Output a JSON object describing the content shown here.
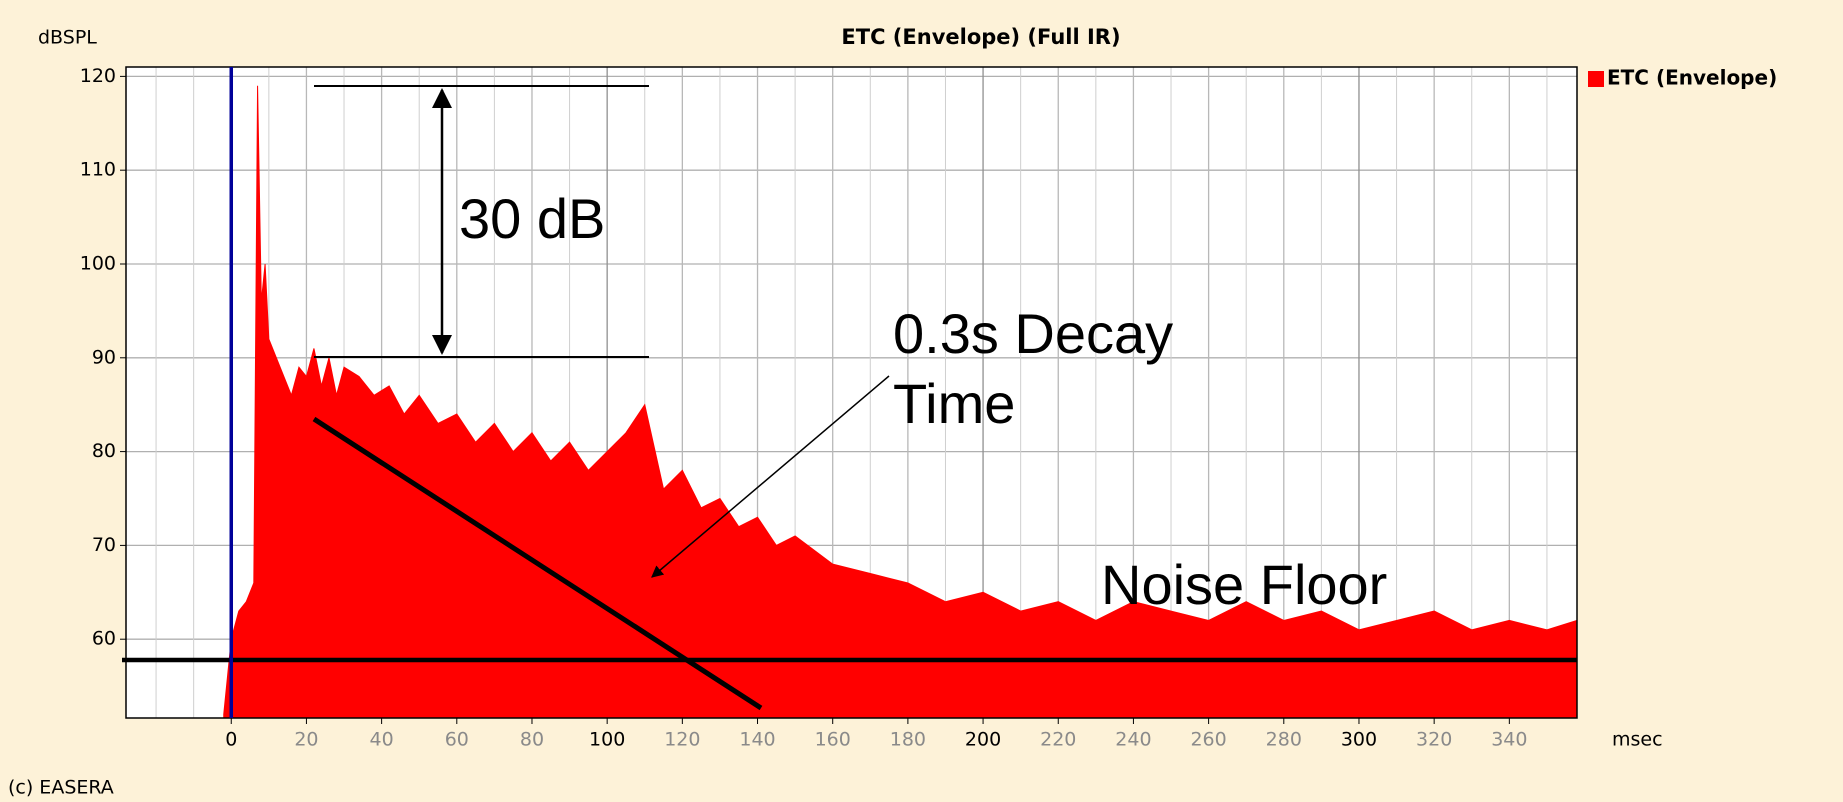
{
  "chart_data": {
    "type": "area",
    "title": "ETC (Envelope) (Full IR)",
    "y_label": "dBSPL",
    "x_label": "msec",
    "credit": "(c) EASERA",
    "annotations": [
      "30 dB",
      "0.3s Decay",
      "Time",
      "Noise Floor"
    ],
    "x": [
      -2,
      0,
      2,
      4,
      6,
      7,
      8,
      9,
      10,
      12,
      14,
      16,
      18,
      20,
      22,
      24,
      26,
      28,
      30,
      34,
      38,
      42,
      46,
      50,
      55,
      60,
      65,
      70,
      75,
      80,
      85,
      90,
      95,
      100,
      105,
      110,
      115,
      120,
      125,
      130,
      135,
      140,
      145,
      150,
      160,
      170,
      180,
      190,
      200,
      210,
      220,
      230,
      240,
      250,
      260,
      270,
      280,
      290,
      300,
      310,
      320,
      330,
      340,
      350,
      358
    ],
    "series": [
      {
        "name": "ETC (Envelope)",
        "color": "#ff0000",
        "values": [
          52,
          60,
          63,
          64,
          66,
          119,
          96,
          100,
          92,
          90,
          88,
          86,
          89,
          88,
          91,
          87,
          90,
          86,
          89,
          88,
          86,
          87,
          84,
          86,
          83,
          84,
          81,
          83,
          80,
          82,
          79,
          81,
          78,
          80,
          82,
          85,
          76,
          78,
          74,
          75,
          72,
          73,
          70,
          71,
          68,
          67,
          66,
          64,
          65,
          63,
          64,
          62,
          64,
          63,
          62,
          64,
          62,
          63,
          61,
          62,
          63,
          61,
          62,
          61,
          62
        ]
      }
    ],
    "xlim": [
      -28,
      358
    ],
    "ylim": [
      51.6,
      121
    ],
    "xticks": [
      0,
      20,
      40,
      60,
      80,
      100,
      120,
      140,
      160,
      180,
      200,
      220,
      240,
      260,
      280,
      300,
      320,
      340
    ],
    "yticks": [
      60,
      70,
      80,
      90,
      100,
      110,
      120
    ],
    "major_xtick_every": 5,
    "grid": true,
    "zero_line_color": "#000099",
    "legend": "right"
  }
}
